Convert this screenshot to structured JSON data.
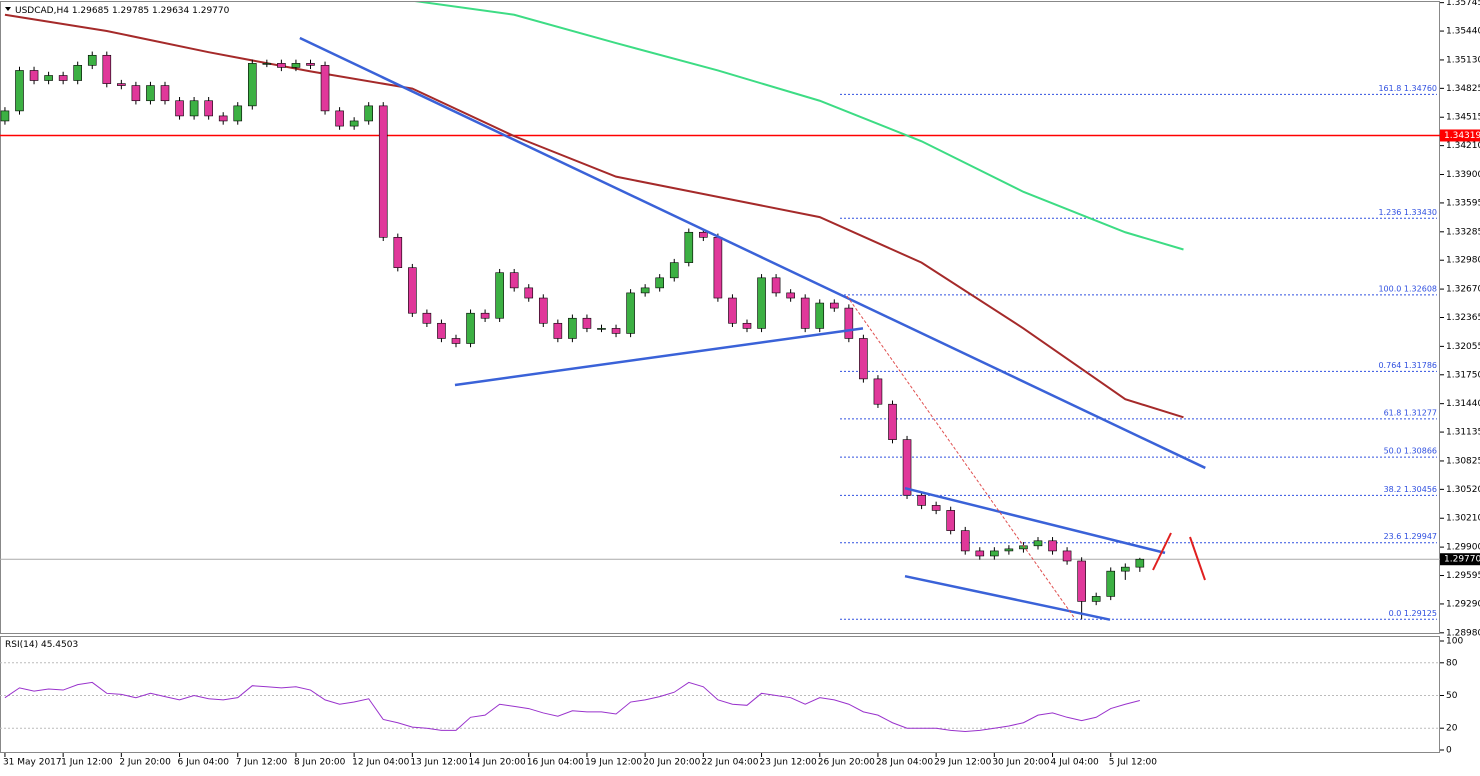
{
  "chart_data": {
    "type": "candlestick",
    "symbol": "USDCAD,H4",
    "header_quote": [
      "1.29685",
      "1.29785",
      "1.29634",
      "1.29770"
    ],
    "categories": [
      "31 May 2017",
      null,
      null,
      null,
      "1 Jun 12:00",
      null,
      null,
      null,
      "2 Jun 20:00",
      null,
      null,
      null,
      "6 Jun 04:00",
      null,
      null,
      null,
      "7 Jun 12:00",
      null,
      null,
      null,
      "8 Jun 20:00",
      null,
      null,
      null,
      "12 Jun 04:00",
      null,
      null,
      null,
      "13 Jun 12:00",
      null,
      null,
      null,
      "14 Jun 20:00",
      null,
      null,
      null,
      "16 Jun 04:00",
      null,
      null,
      null,
      "19 Jun 12:00",
      null,
      null,
      null,
      "20 Jun 20:00",
      null,
      null,
      null,
      "22 Jun 04:00",
      null,
      null,
      null,
      "23 Jun 12:00",
      null,
      null,
      null,
      "26 Jun 20:00",
      null,
      null,
      null,
      "28 Jun 04:00",
      null,
      null,
      null,
      "29 Jun 12:00",
      null,
      null,
      null,
      "30 Jun 20:00",
      null,
      null,
      null,
      "4 Jul 04:00",
      null,
      null,
      null,
      "5 Jul 12:00",
      null,
      null
    ],
    "open": [
      1.34475,
      1.34583,
      1.35017,
      1.34909,
      1.34963,
      1.34909,
      1.35072,
      1.3518,
      1.34876,
      1.34855,
      1.34692,
      1.34855,
      1.34692,
      1.34529,
      1.34692,
      1.34529,
      1.34475,
      1.34637,
      1.35093,
      1.35093,
      1.3505,
      1.35093,
      1.35072,
      1.34583,
      1.3442,
      1.34475,
      1.34637,
      1.33226,
      1.329,
      1.32411,
      1.32303,
      1.3214,
      1.32086,
      1.32411,
      1.32357,
      1.32846,
      1.32683,
      1.32574,
      1.32303,
      1.3214,
      1.32357,
      1.32248,
      1.32248,
      1.32194,
      1.32629,
      1.32683,
      1.32791,
      1.32954,
      1.3328,
      1.33226,
      1.32574,
      1.32303,
      1.32248,
      1.32791,
      1.32629,
      1.32574,
      1.32248,
      1.3252,
      1.32466,
      1.3214,
      1.31706,
      1.31434,
      1.31054,
      1.30457,
      1.30348,
      1.30294,
      1.30077,
      1.29859,
      1.29805,
      1.29859,
      1.29881,
      1.29914,
      1.29968,
      1.29859,
      1.29751,
      1.29317,
      1.29371,
      1.29642,
      1.29685
    ],
    "high": [
      1.34623,
      1.35057,
      1.35057,
      1.35003,
      1.35003,
      1.35112,
      1.3522,
      1.3522,
      1.34916,
      1.34895,
      1.34895,
      1.34895,
      1.34732,
      1.34732,
      1.34732,
      1.34569,
      1.34677,
      1.35133,
      1.35133,
      1.35133,
      1.35133,
      1.35133,
      1.35112,
      1.34623,
      1.34515,
      1.34677,
      1.34677,
      1.33266,
      1.3294,
      1.32451,
      1.32343,
      1.3218,
      1.32451,
      1.32451,
      1.32886,
      1.32886,
      1.32723,
      1.32614,
      1.32343,
      1.32397,
      1.32397,
      1.32288,
      1.32288,
      1.32669,
      1.32723,
      1.32831,
      1.32994,
      1.3332,
      1.3332,
      1.33266,
      1.32614,
      1.32343,
      1.32831,
      1.32831,
      1.32669,
      1.32614,
      1.3256,
      1.3256,
      1.32506,
      1.3218,
      1.31746,
      1.31474,
      1.31094,
      1.30497,
      1.30388,
      1.30334,
      1.30117,
      1.29899,
      1.29899,
      1.29921,
      1.29954,
      1.30008,
      1.30008,
      1.29899,
      1.29791,
      1.29411,
      1.29682,
      1.29725,
      1.29785
    ],
    "low": [
      1.34435,
      1.34543,
      1.34869,
      1.34869,
      1.34869,
      1.34869,
      1.35032,
      1.34836,
      1.34815,
      1.34652,
      1.34652,
      1.34652,
      1.34489,
      1.34489,
      1.34489,
      1.34435,
      1.34435,
      1.34597,
      1.35053,
      1.3501,
      1.3501,
      1.35032,
      1.34543,
      1.3438,
      1.3438,
      1.34435,
      1.33186,
      1.3286,
      1.32371,
      1.32263,
      1.321,
      1.32046,
      1.32046,
      1.32317,
      1.32317,
      1.32643,
      1.32534,
      1.32263,
      1.321,
      1.321,
      1.32208,
      1.32208,
      1.32154,
      1.32154,
      1.32589,
      1.32643,
      1.32751,
      1.32914,
      1.33186,
      1.32534,
      1.32263,
      1.32208,
      1.32208,
      1.32589,
      1.32534,
      1.32208,
      1.32208,
      1.32426,
      1.321,
      1.31666,
      1.31394,
      1.31014,
      1.30417,
      1.30308,
      1.30254,
      1.30037,
      1.29819,
      1.29765,
      1.29765,
      1.29819,
      1.29841,
      1.29874,
      1.29819,
      1.29711,
      1.29125,
      1.29277,
      1.29331,
      1.29548,
      1.29634
    ],
    "close": [
      1.34583,
      1.35017,
      1.34909,
      1.34963,
      1.34909,
      1.35072,
      1.3518,
      1.34876,
      1.34855,
      1.34692,
      1.34855,
      1.34692,
      1.34529,
      1.34692,
      1.34529,
      1.34475,
      1.34637,
      1.35093,
      1.35093,
      1.3505,
      1.35093,
      1.35072,
      1.34583,
      1.3442,
      1.34475,
      1.34637,
      1.33226,
      1.329,
      1.32411,
      1.32303,
      1.3214,
      1.32086,
      1.32411,
      1.32357,
      1.32846,
      1.32683,
      1.32574,
      1.32303,
      1.3214,
      1.32357,
      1.32248,
      1.32248,
      1.32194,
      1.32629,
      1.32683,
      1.32791,
      1.32954,
      1.3328,
      1.33226,
      1.32574,
      1.32303,
      1.32248,
      1.32791,
      1.32629,
      1.32574,
      1.32248,
      1.3252,
      1.32466,
      1.3214,
      1.31706,
      1.31434,
      1.31054,
      1.30457,
      1.30348,
      1.30294,
      1.30077,
      1.29859,
      1.29805,
      1.29859,
      1.29881,
      1.29914,
      1.29968,
      1.29859,
      1.29751,
      1.29317,
      1.29371,
      1.29642,
      1.29685,
      1.2977
    ],
    "up_color": "#3cb043",
    "down_color": "#e0389a",
    "xlim": [
      -0.34,
      98.63
    ],
    "ylim": [
      1.28978,
      1.35752
    ],
    "yticks": [
      1.35745,
      {
        "value": 1.3544,
        "label": "1.35440"
      },
      {
        "value": 1.3513,
        "label": "1.35130"
      },
      1.34825,
      1.34515,
      {
        "value": 1.3421,
        "label": "1.34210"
      },
      {
        "value": 1.339,
        "label": "1.33900"
      },
      1.33595,
      1.33285,
      {
        "value": 1.3298,
        "label": "1.32980"
      },
      {
        "value": 1.3267,
        "label": "1.32670"
      },
      1.32365,
      1.32055,
      {
        "value": 1.3175,
        "label": "1.31750"
      },
      {
        "value": 1.3144,
        "label": "1.31440"
      },
      1.31135,
      1.30825,
      {
        "value": 1.3052,
        "label": "1.30520"
      },
      {
        "value": 1.3021,
        "label": "1.30210"
      },
      {
        "value": 1.299,
        "label": "1.29900"
      },
      1.29595,
      {
        "value": 1.2929,
        "label": "1.29290"
      },
      {
        "value": 1.2898,
        "label": "1.28980"
      }
    ],
    "moving_averages": [
      {
        "color": "#a52a2a",
        "x": [
          0,
          7,
          14,
          21,
          28,
          35,
          42,
          49,
          56,
          63,
          70,
          77,
          81
        ],
        "values": [
          1.35615,
          1.35441,
          1.35213,
          1.35007,
          1.34822,
          1.34312,
          1.33877,
          1.3366,
          1.33443,
          1.32954,
          1.32248,
          1.31488,
          1.31293
        ]
      },
      {
        "color": "#3ddc84",
        "x": [
          27,
          35,
          42,
          49,
          56,
          63,
          70,
          77,
          81
        ],
        "values": [
          1.35788,
          1.35615,
          1.35311,
          1.35017,
          1.34692,
          1.34257,
          1.33714,
          1.3328,
          1.33095
        ]
      }
    ],
    "resistance": {
      "value": 1.34319,
      "label": "1.34319",
      "color": "#ff0000"
    },
    "current": {
      "value": 1.2977,
      "label": "1.29770"
    },
    "fibonacci": [
      {
        "value": 1.3476,
        "label": "161.8 1.34760"
      },
      {
        "value": 1.3343,
        "label": "1.236 1.33430"
      },
      {
        "value": 1.32608,
        "label": "100.0 1.32608"
      },
      {
        "value": 1.31786,
        "label": "0.764 1.31786"
      },
      {
        "value": 1.31277,
        "label": "61.8 1.31277"
      },
      {
        "value": 1.30866,
        "label": "50.0 1.30866"
      },
      {
        "value": 1.30456,
        "label": "38.2 1.30456"
      },
      {
        "value": 1.29947,
        "label": "23.6 1.29947"
      },
      {
        "value": 1.29125,
        "label": "0.0 1.29125"
      }
    ],
    "trendlines": [
      {
        "color": "#3a62d8",
        "x": [
          20.27,
          82.5
        ],
        "y": [
          1.35365,
          1.3075
        ]
      },
      {
        "color": "#3a62d8",
        "x": [
          30.93,
          58.97
        ],
        "y": [
          1.3164,
          1.32248
        ]
      },
      {
        "color": "#3a62d8",
        "x": [
          61.86,
          79.73
        ],
        "y": [
          1.30533,
          1.29838
        ]
      },
      {
        "color": "#3a62d8",
        "x": [
          61.86,
          75.95
        ],
        "y": [
          1.29588,
          1.29121
        ]
      },
      {
        "color": "#e05050",
        "dashed": true,
        "x": [
          57.87,
          73.54
        ],
        "y": [
          1.32596,
          1.29132
        ]
      }
    ],
    "rsi": {
      "name": "RSI(14)",
      "color": "#9932cc",
      "ylim": [
        0,
        100
      ],
      "yticks": [
        100,
        80,
        50,
        20,
        0
      ],
      "values": [
        48,
        57,
        54,
        56,
        55,
        60,
        62,
        52,
        51,
        48,
        52,
        49,
        46,
        50,
        47,
        46,
        48,
        59,
        58,
        57,
        58,
        55,
        46,
        42,
        44,
        47,
        28,
        25,
        21,
        20,
        18,
        18,
        30,
        32,
        42,
        40,
        38,
        34,
        31,
        36,
        35,
        35,
        33,
        44,
        46,
        49,
        53,
        62,
        58,
        46,
        42,
        41,
        52,
        50,
        48,
        42,
        48,
        46,
        42,
        35,
        32,
        25,
        20,
        20,
        20,
        18,
        17,
        18,
        20,
        22,
        25,
        32,
        34,
        30,
        27,
        30,
        38,
        42,
        45.4503
      ]
    }
  }
}
